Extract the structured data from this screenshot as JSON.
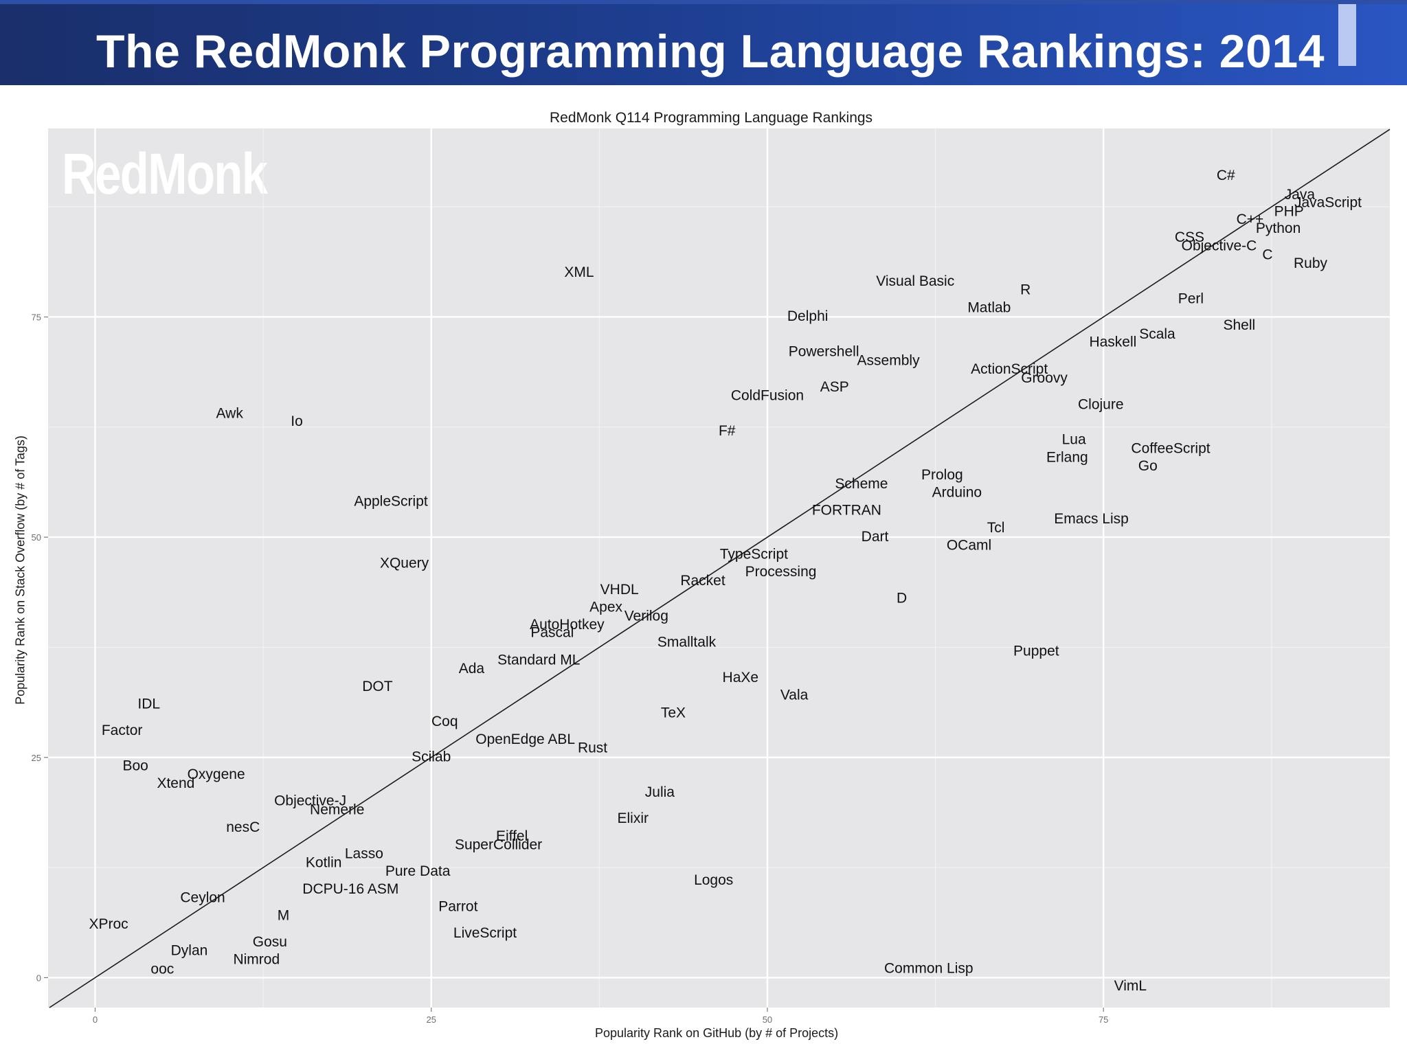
{
  "slide": {
    "title": "The RedMonk Programming Language Rankings: 2014"
  },
  "watermark": "RedMonk",
  "chart_data": {
    "type": "scatter",
    "title": "RedMonk Q114 Programming Language Rankings",
    "xlabel": "Popularity Rank on GitHub (by # of Projects)",
    "ylabel": "Popularity Rank on Stack Overflow (by # of Tags)",
    "xlim": [
      -3.5,
      96.3
    ],
    "ylim": [
      -3.4,
      96.4
    ],
    "x_ticks": [
      0,
      25,
      50,
      75
    ],
    "y_ticks": [
      0,
      25,
      50,
      75
    ],
    "grid": true,
    "diagonal_line": true,
    "points": [
      {
        "label": "C#",
        "x": 84.1,
        "y": 91.1
      },
      {
        "label": "Java",
        "x": 89.6,
        "y": 88.9
      },
      {
        "label": "JavaScript",
        "x": 91.7,
        "y": 88.0
      },
      {
        "label": "PHP",
        "x": 88.8,
        "y": 87.0
      },
      {
        "label": "C++",
        "x": 85.9,
        "y": 86.1
      },
      {
        "label": "Python",
        "x": 88.0,
        "y": 85.1
      },
      {
        "label": "CSS",
        "x": 81.4,
        "y": 84.1
      },
      {
        "label": "Objective-C",
        "x": 83.6,
        "y": 83.1
      },
      {
        "label": "C",
        "x": 87.2,
        "y": 82.1
      },
      {
        "label": "Ruby",
        "x": 90.4,
        "y": 81.1
      },
      {
        "label": "XML",
        "x": 36.0,
        "y": 80.1
      },
      {
        "label": "Visual Basic",
        "x": 61.0,
        "y": 79.1
      },
      {
        "label": "R",
        "x": 69.2,
        "y": 78.1
      },
      {
        "label": "Perl",
        "x": 81.5,
        "y": 77.1
      },
      {
        "label": "Matlab",
        "x": 66.5,
        "y": 76.1
      },
      {
        "label": "Delphi",
        "x": 53.0,
        "y": 75.1
      },
      {
        "label": "Shell",
        "x": 85.1,
        "y": 74.1
      },
      {
        "label": "Scala",
        "x": 79.0,
        "y": 73.1
      },
      {
        "label": "Haskell",
        "x": 75.7,
        "y": 72.2
      },
      {
        "label": "Powershell",
        "x": 54.2,
        "y": 71.1
      },
      {
        "label": "Assembly",
        "x": 59.0,
        "y": 70.1
      },
      {
        "label": "ActionScript",
        "x": 68.0,
        "y": 69.1
      },
      {
        "label": "Groovy",
        "x": 70.6,
        "y": 68.1
      },
      {
        "label": "ASP",
        "x": 55.0,
        "y": 67.1
      },
      {
        "label": "ColdFusion",
        "x": 50.0,
        "y": 66.1
      },
      {
        "label": "Clojure",
        "x": 74.8,
        "y": 65.1
      },
      {
        "label": "Awk",
        "x": 10.0,
        "y": 64.1
      },
      {
        "label": "Io",
        "x": 15.0,
        "y": 63.2
      },
      {
        "label": "F#",
        "x": 47.0,
        "y": 62.1
      },
      {
        "label": "Lua",
        "x": 72.8,
        "y": 61.1
      },
      {
        "label": "CoffeeScript",
        "x": 80.0,
        "y": 60.1
      },
      {
        "label": "Erlang",
        "x": 72.3,
        "y": 59.1
      },
      {
        "label": "Go",
        "x": 78.3,
        "y": 58.1
      },
      {
        "label": "Prolog",
        "x": 63.0,
        "y": 57.1
      },
      {
        "label": "Scheme",
        "x": 57.0,
        "y": 56.1
      },
      {
        "label": "Arduino",
        "x": 64.1,
        "y": 55.1
      },
      {
        "label": "AppleScript",
        "x": 22.0,
        "y": 54.1
      },
      {
        "label": "FORTRAN",
        "x": 55.9,
        "y": 53.1
      },
      {
        "label": "Emacs Lisp",
        "x": 74.1,
        "y": 52.1
      },
      {
        "label": "Tcl",
        "x": 67.0,
        "y": 51.1
      },
      {
        "label": "Dart",
        "x": 58.0,
        "y": 50.1
      },
      {
        "label": "OCaml",
        "x": 65.0,
        "y": 49.1
      },
      {
        "label": "TypeScript",
        "x": 49.0,
        "y": 48.1
      },
      {
        "label": "XQuery",
        "x": 23.0,
        "y": 47.1
      },
      {
        "label": "Processing",
        "x": 51.0,
        "y": 46.1
      },
      {
        "label": "Racket",
        "x": 45.2,
        "y": 45.1
      },
      {
        "label": "VHDL",
        "x": 39.0,
        "y": 44.1
      },
      {
        "label": "D",
        "x": 60.0,
        "y": 43.1
      },
      {
        "label": "Apex",
        "x": 38.0,
        "y": 42.1
      },
      {
        "label": "Verilog",
        "x": 41.0,
        "y": 41.1
      },
      {
        "label": "AutoHotkey",
        "x": 35.1,
        "y": 40.1
      },
      {
        "label": "Pascal",
        "x": 34.0,
        "y": 39.2
      },
      {
        "label": "Smalltalk",
        "x": 44.0,
        "y": 38.1
      },
      {
        "label": "Puppet",
        "x": 70.0,
        "y": 37.1
      },
      {
        "label": "Standard ML",
        "x": 33.0,
        "y": 36.1
      },
      {
        "label": "Ada",
        "x": 28.0,
        "y": 35.1
      },
      {
        "label": "HaXe",
        "x": 48.0,
        "y": 34.1
      },
      {
        "label": "DOT",
        "x": 21.0,
        "y": 33.1
      },
      {
        "label": "Vala",
        "x": 52.0,
        "y": 32.1
      },
      {
        "label": "IDL",
        "x": 4.0,
        "y": 31.1
      },
      {
        "label": "TeX",
        "x": 43.0,
        "y": 30.1
      },
      {
        "label": "Coq",
        "x": 26.0,
        "y": 29.1
      },
      {
        "label": "Factor",
        "x": 2.0,
        "y": 28.1
      },
      {
        "label": "OpenEdge ABL",
        "x": 32.0,
        "y": 27.1
      },
      {
        "label": "Rust",
        "x": 37.0,
        "y": 26.1
      },
      {
        "label": "Scilab",
        "x": 25.0,
        "y": 25.1
      },
      {
        "label": "Boo",
        "x": 3.0,
        "y": 24.1
      },
      {
        "label": "Oxygene",
        "x": 9.0,
        "y": 23.1
      },
      {
        "label": "Xtend",
        "x": 6.0,
        "y": 22.1
      },
      {
        "label": "Julia",
        "x": 42.0,
        "y": 21.1
      },
      {
        "label": "Objective-J",
        "x": 16.0,
        "y": 20.1
      },
      {
        "label": "Nemerle",
        "x": 18.0,
        "y": 19.1
      },
      {
        "label": "Elixir",
        "x": 40.0,
        "y": 18.1
      },
      {
        "label": "nesC",
        "x": 11.0,
        "y": 17.1
      },
      {
        "label": "Eiffel",
        "x": 31.0,
        "y": 16.1
      },
      {
        "label": "SuperCollider",
        "x": 30.0,
        "y": 15.1
      },
      {
        "label": "Lasso",
        "x": 20.0,
        "y": 14.1
      },
      {
        "label": "Kotlin",
        "x": 17.0,
        "y": 13.1
      },
      {
        "label": "Pure Data",
        "x": 24.0,
        "y": 12.1
      },
      {
        "label": "Logos",
        "x": 46.0,
        "y": 11.1
      },
      {
        "label": "DCPU-16 ASM",
        "x": 19.0,
        "y": 10.1
      },
      {
        "label": "Ceylon",
        "x": 8.0,
        "y": 9.1
      },
      {
        "label": "Parrot",
        "x": 27.0,
        "y": 8.1
      },
      {
        "label": "M",
        "x": 14.0,
        "y": 7.1
      },
      {
        "label": "XProc",
        "x": 1.0,
        "y": 6.1
      },
      {
        "label": "LiveScript",
        "x": 29.0,
        "y": 5.1
      },
      {
        "label": "Gosu",
        "x": 13.0,
        "y": 4.1
      },
      {
        "label": "Dylan",
        "x": 7.0,
        "y": 3.1
      },
      {
        "label": "Nimrod",
        "x": 12.0,
        "y": 2.1
      },
      {
        "label": "Common Lisp",
        "x": 62.0,
        "y": 1.1
      },
      {
        "label": "ooc",
        "x": 5.0,
        "y": 1.0
      },
      {
        "label": "VimL",
        "x": 77.0,
        "y": -0.9
      }
    ]
  }
}
